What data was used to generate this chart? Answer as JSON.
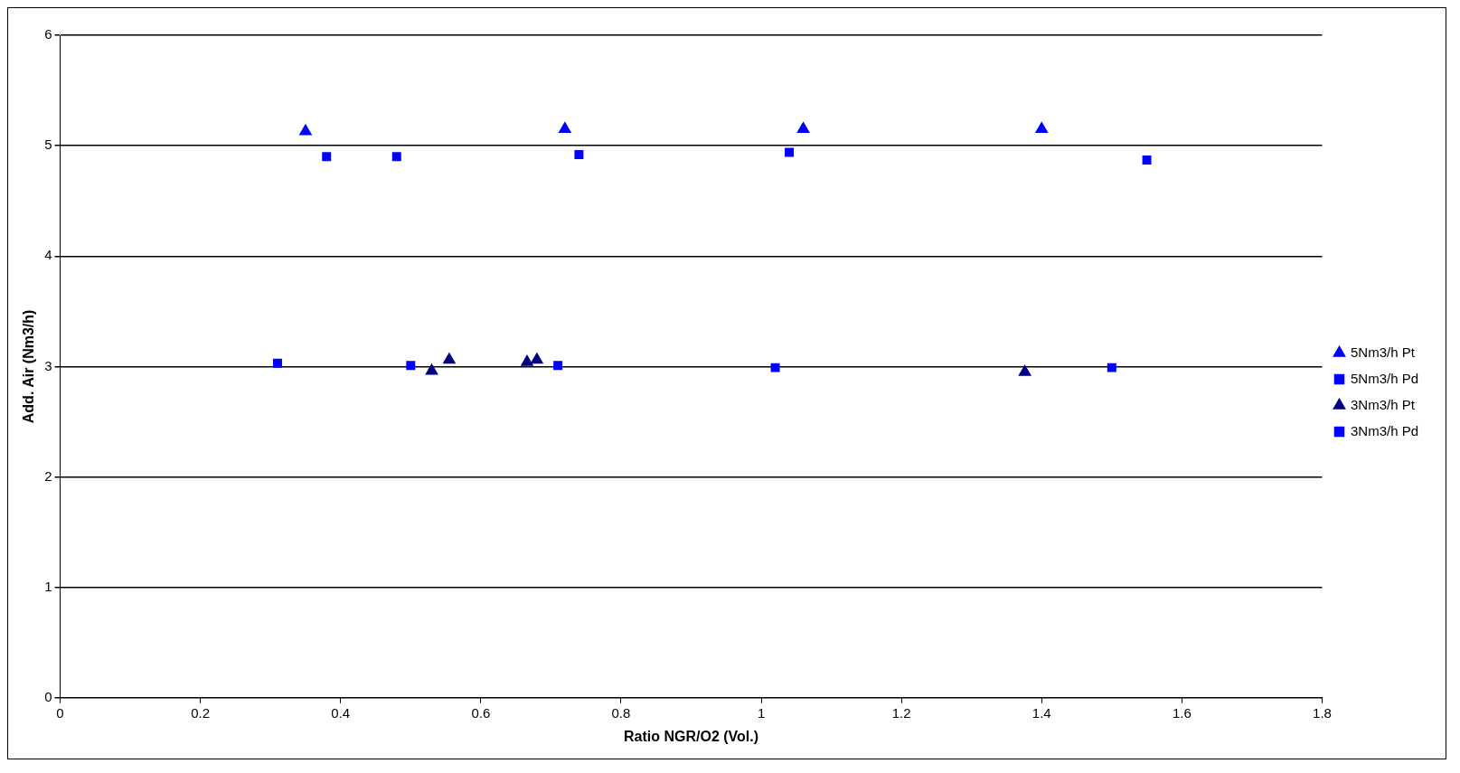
{
  "chart_data": {
    "type": "scatter",
    "xlabel": "Ratio NGR/O2 (Vol.)",
    "ylabel": "Add. Air (Nm3/h)",
    "xlim": [
      0,
      1.8
    ],
    "xticks": [
      0,
      0.2,
      0.4,
      0.6,
      0.8,
      1,
      1.2,
      1.4,
      1.6,
      1.8
    ],
    "ylim": [
      0,
      6
    ],
    "yticks": [
      0,
      1,
      2,
      3,
      4,
      5,
      6
    ],
    "grid": "y",
    "legend": "right",
    "series": [
      {
        "name": "5Nm3/h Pt",
        "color": "#0000ff",
        "marker": "triangle",
        "x": [
          0.35,
          0.72,
          1.06,
          1.4
        ],
        "values": [
          5.13,
          5.15,
          5.15,
          5.15
        ]
      },
      {
        "name": "5Nm3/h Pd",
        "color": "#0000ff",
        "marker": "square",
        "x": [
          0.38,
          0.48,
          0.74,
          1.04,
          1.55
        ],
        "values": [
          4.9,
          4.9,
          4.92,
          4.94,
          4.87
        ]
      },
      {
        "name": "3Nm3/h Pt",
        "color": "#000080",
        "marker": "triangle",
        "x": [
          0.53,
          0.555,
          0.666,
          0.68,
          1.376
        ],
        "values": [
          2.96,
          3.06,
          3.04,
          3.06,
          2.95
        ]
      },
      {
        "name": "3Nm3/h Pd",
        "color": "#0000ff",
        "marker": "square",
        "x": [
          0.31,
          0.5,
          0.71,
          1.02,
          1.5
        ],
        "values": [
          3.03,
          3.01,
          3.01,
          2.99,
          2.99
        ]
      }
    ]
  }
}
